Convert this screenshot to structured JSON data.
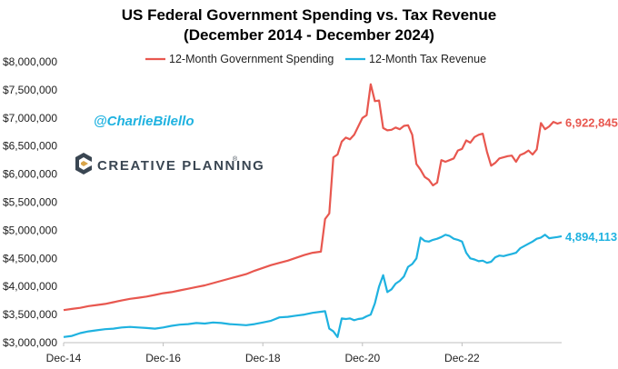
{
  "chart_data": {
    "type": "line",
    "title": "US Federal Government Spending vs. Tax Revenue",
    "subtitle": "(December 2014 - December 2024)",
    "xlabel": "",
    "ylabel": "",
    "x_ticks": [
      "Dec-14",
      "Dec-16",
      "Dec-18",
      "Dec-20",
      "Dec-22"
    ],
    "x_range": [
      "2014-12",
      "2024-12"
    ],
    "y_ticks": [
      "$3,000,000",
      "$3,500,000",
      "$4,000,000",
      "$4,500,000",
      "$5,000,000",
      "$5,500,000",
      "$6,000,000",
      "$6,500,000",
      "$7,000,000",
      "$7,500,000",
      "$8,000,000"
    ],
    "ylim": [
      3000000,
      8000000
    ],
    "grid": false,
    "legend_position": "top",
    "series": [
      {
        "name": "12-Month Government Spending",
        "color": "#e8574f",
        "end_label": "6,922,845",
        "points": [
          [
            "2014-12",
            3580000
          ],
          [
            "2015-02",
            3600000
          ],
          [
            "2015-04",
            3620000
          ],
          [
            "2015-06",
            3650000
          ],
          [
            "2015-08",
            3670000
          ],
          [
            "2015-10",
            3690000
          ],
          [
            "2015-12",
            3720000
          ],
          [
            "2016-02",
            3750000
          ],
          [
            "2016-04",
            3780000
          ],
          [
            "2016-06",
            3800000
          ],
          [
            "2016-08",
            3820000
          ],
          [
            "2016-10",
            3850000
          ],
          [
            "2016-12",
            3880000
          ],
          [
            "2017-02",
            3900000
          ],
          [
            "2017-04",
            3930000
          ],
          [
            "2017-06",
            3960000
          ],
          [
            "2017-08",
            3990000
          ],
          [
            "2017-10",
            4020000
          ],
          [
            "2017-12",
            4060000
          ],
          [
            "2018-02",
            4100000
          ],
          [
            "2018-04",
            4140000
          ],
          [
            "2018-06",
            4180000
          ],
          [
            "2018-08",
            4220000
          ],
          [
            "2018-10",
            4280000
          ],
          [
            "2018-12",
            4330000
          ],
          [
            "2019-02",
            4380000
          ],
          [
            "2019-04",
            4420000
          ],
          [
            "2019-06",
            4460000
          ],
          [
            "2019-08",
            4510000
          ],
          [
            "2019-10",
            4560000
          ],
          [
            "2019-12",
            4600000
          ],
          [
            "2020-01",
            4610000
          ],
          [
            "2020-02",
            4620000
          ],
          [
            "2020-03",
            5200000
          ],
          [
            "2020-04",
            5300000
          ],
          [
            "2020-05",
            6300000
          ],
          [
            "2020-06",
            6350000
          ],
          [
            "2020-07",
            6580000
          ],
          [
            "2020-08",
            6650000
          ],
          [
            "2020-09",
            6620000
          ],
          [
            "2020-10",
            6700000
          ],
          [
            "2020-11",
            6850000
          ],
          [
            "2020-12",
            7000000
          ],
          [
            "2021-01",
            7050000
          ],
          [
            "2021-02",
            7600000
          ],
          [
            "2021-03",
            7300000
          ],
          [
            "2021-04",
            7310000
          ],
          [
            "2021-05",
            6820000
          ],
          [
            "2021-06",
            6780000
          ],
          [
            "2021-07",
            6790000
          ],
          [
            "2021-08",
            6830000
          ],
          [
            "2021-09",
            6800000
          ],
          [
            "2021-10",
            6860000
          ],
          [
            "2021-11",
            6870000
          ],
          [
            "2021-12",
            6700000
          ],
          [
            "2022-01",
            6180000
          ],
          [
            "2022-02",
            6080000
          ],
          [
            "2022-03",
            5950000
          ],
          [
            "2022-04",
            5900000
          ],
          [
            "2022-05",
            5800000
          ],
          [
            "2022-06",
            5850000
          ],
          [
            "2022-07",
            6250000
          ],
          [
            "2022-08",
            6220000
          ],
          [
            "2022-09",
            6250000
          ],
          [
            "2022-10",
            6280000
          ],
          [
            "2022-11",
            6420000
          ],
          [
            "2022-12",
            6450000
          ],
          [
            "2023-01",
            6600000
          ],
          [
            "2023-02",
            6560000
          ],
          [
            "2023-03",
            6660000
          ],
          [
            "2023-04",
            6700000
          ],
          [
            "2023-05",
            6720000
          ],
          [
            "2023-06",
            6400000
          ],
          [
            "2023-07",
            6150000
          ],
          [
            "2023-08",
            6200000
          ],
          [
            "2023-09",
            6280000
          ],
          [
            "2023-10",
            6300000
          ],
          [
            "2023-11",
            6320000
          ],
          [
            "2023-12",
            6330000
          ],
          [
            "2024-01",
            6220000
          ],
          [
            "2024-02",
            6340000
          ],
          [
            "2024-03",
            6370000
          ],
          [
            "2024-04",
            6420000
          ],
          [
            "2024-05",
            6350000
          ],
          [
            "2024-06",
            6440000
          ],
          [
            "2024-07",
            6910000
          ],
          [
            "2024-08",
            6800000
          ],
          [
            "2024-09",
            6850000
          ],
          [
            "2024-10",
            6930000
          ],
          [
            "2024-11",
            6900000
          ],
          [
            "2024-12",
            6922845
          ]
        ]
      },
      {
        "name": "12-Month Tax Revenue",
        "color": "#1fb2e0",
        "end_label": "4,894,113",
        "points": [
          [
            "2014-12",
            3100000
          ],
          [
            "2015-02",
            3120000
          ],
          [
            "2015-04",
            3170000
          ],
          [
            "2015-06",
            3200000
          ],
          [
            "2015-08",
            3220000
          ],
          [
            "2015-10",
            3240000
          ],
          [
            "2015-12",
            3250000
          ],
          [
            "2016-02",
            3270000
          ],
          [
            "2016-04",
            3280000
          ],
          [
            "2016-06",
            3270000
          ],
          [
            "2016-08",
            3260000
          ],
          [
            "2016-10",
            3250000
          ],
          [
            "2016-12",
            3270000
          ],
          [
            "2017-02",
            3300000
          ],
          [
            "2017-04",
            3320000
          ],
          [
            "2017-06",
            3330000
          ],
          [
            "2017-08",
            3350000
          ],
          [
            "2017-10",
            3340000
          ],
          [
            "2017-12",
            3360000
          ],
          [
            "2018-02",
            3350000
          ],
          [
            "2018-04",
            3330000
          ],
          [
            "2018-06",
            3320000
          ],
          [
            "2018-08",
            3310000
          ],
          [
            "2018-10",
            3330000
          ],
          [
            "2018-12",
            3360000
          ],
          [
            "2019-02",
            3390000
          ],
          [
            "2019-04",
            3450000
          ],
          [
            "2019-06",
            3460000
          ],
          [
            "2019-08",
            3480000
          ],
          [
            "2019-10",
            3500000
          ],
          [
            "2019-12",
            3530000
          ],
          [
            "2020-02",
            3550000
          ],
          [
            "2020-03",
            3560000
          ],
          [
            "2020-04",
            3250000
          ],
          [
            "2020-05",
            3200000
          ],
          [
            "2020-06",
            3100000
          ],
          [
            "2020-07",
            3430000
          ],
          [
            "2020-08",
            3420000
          ],
          [
            "2020-09",
            3430000
          ],
          [
            "2020-10",
            3400000
          ],
          [
            "2020-11",
            3420000
          ],
          [
            "2020-12",
            3430000
          ],
          [
            "2021-01",
            3470000
          ],
          [
            "2021-02",
            3500000
          ],
          [
            "2021-03",
            3700000
          ],
          [
            "2021-04",
            4000000
          ],
          [
            "2021-05",
            4200000
          ],
          [
            "2021-06",
            3900000
          ],
          [
            "2021-07",
            3950000
          ],
          [
            "2021-08",
            4050000
          ],
          [
            "2021-09",
            4100000
          ],
          [
            "2021-10",
            4180000
          ],
          [
            "2021-11",
            4350000
          ],
          [
            "2021-12",
            4400000
          ],
          [
            "2022-01",
            4500000
          ],
          [
            "2022-02",
            4870000
          ],
          [
            "2022-03",
            4810000
          ],
          [
            "2022-04",
            4800000
          ],
          [
            "2022-05",
            4830000
          ],
          [
            "2022-06",
            4850000
          ],
          [
            "2022-07",
            4880000
          ],
          [
            "2022-08",
            4920000
          ],
          [
            "2022-09",
            4900000
          ],
          [
            "2022-10",
            4850000
          ],
          [
            "2022-11",
            4830000
          ],
          [
            "2022-12",
            4800000
          ],
          [
            "2023-01",
            4600000
          ],
          [
            "2023-02",
            4500000
          ],
          [
            "2023-03",
            4480000
          ],
          [
            "2023-04",
            4450000
          ],
          [
            "2023-05",
            4460000
          ],
          [
            "2023-06",
            4420000
          ],
          [
            "2023-07",
            4440000
          ],
          [
            "2023-08",
            4520000
          ],
          [
            "2023-09",
            4550000
          ],
          [
            "2023-10",
            4540000
          ],
          [
            "2023-11",
            4560000
          ],
          [
            "2023-12",
            4580000
          ],
          [
            "2024-01",
            4600000
          ],
          [
            "2024-02",
            4680000
          ],
          [
            "2024-03",
            4720000
          ],
          [
            "2024-04",
            4760000
          ],
          [
            "2024-05",
            4800000
          ],
          [
            "2024-06",
            4850000
          ],
          [
            "2024-07",
            4870000
          ],
          [
            "2024-08",
            4920000
          ],
          [
            "2024-09",
            4860000
          ],
          [
            "2024-10",
            4870000
          ],
          [
            "2024-11",
            4880000
          ],
          [
            "2024-12",
            4894113
          ]
        ]
      }
    ],
    "annotations": [
      "@CharlieBilello"
    ]
  },
  "branding": {
    "logo_text": "CREATIVE PLANNING",
    "logo_mark": "®",
    "logo_color": "#3a4652",
    "handle_color": "#1fb2e0"
  }
}
